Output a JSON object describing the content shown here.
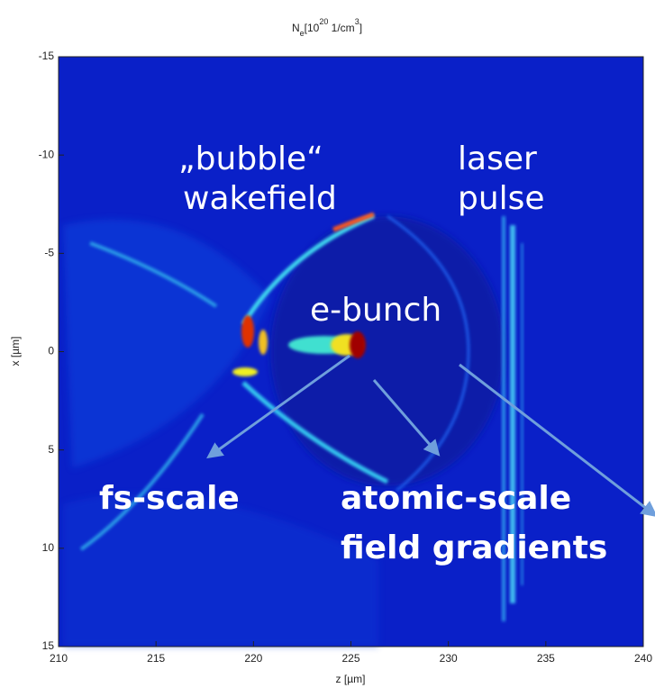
{
  "chart_data": {
    "type": "image",
    "title_parts": [
      "N",
      "e",
      "[10",
      "20",
      " 1/cm",
      "3",
      "]"
    ],
    "xlabel": "z [µm]",
    "ylabel": "x [µm]",
    "xlim": [
      210,
      240
    ],
    "xticks": [
      210,
      215,
      220,
      225,
      230,
      235,
      240
    ],
    "ylim": [
      -15,
      15
    ],
    "yticks": [
      -15,
      -10,
      -5,
      0,
      5,
      10,
      15
    ],
    "y_reversed": true,
    "annotations": [
      "„bubble“",
      "wakefield",
      "laser",
      "pulse",
      "e-bunch",
      "fs-scale",
      "atomic-scale",
      "field gradients"
    ]
  }
}
